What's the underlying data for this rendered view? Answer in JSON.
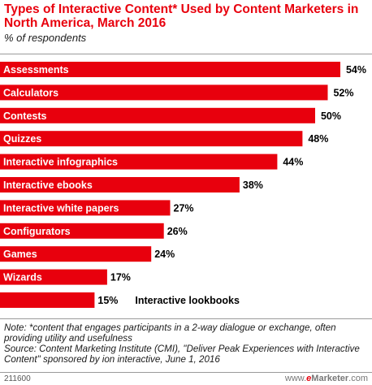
{
  "chart_data": {
    "type": "bar",
    "orientation": "horizontal",
    "title": "Types of Interactive Content* Used by Content Marketers in North America, March 2016",
    "subtitle": "% of respondents",
    "xlabel": "",
    "ylabel": "",
    "xlim": [
      0,
      54
    ],
    "grid": false,
    "legend": "none",
    "bar_color": "#e8000d",
    "categories": [
      "Assessments",
      "Calculators",
      "Contests",
      "Quizzes",
      "Interactive infographics",
      "Interactive ebooks",
      "Interactive white papers",
      "Configurators",
      "Games",
      "Wizards",
      "Interactive lookbooks"
    ],
    "values": [
      54,
      52,
      50,
      48,
      44,
      38,
      27,
      26,
      24,
      17,
      15
    ],
    "value_labels": [
      "54%",
      "52%",
      "50%",
      "48%",
      "44%",
      "38%",
      "27%",
      "26%",
      "24%",
      "17%",
      "15%"
    ]
  },
  "notes": {
    "note": "Note: *content that engages participants in a 2-way dialogue or exchange, often providing utility and usefulness",
    "source": "Source: Content Marketing Institute (CMI), \"Deliver Peak Experiences with Interactive Content\" sponsored by ion interactive, June 1, 2016"
  },
  "footer": {
    "chart_id": "211600",
    "brand_prefix": "www.",
    "brand_e": "e",
    "brand_name": "Marketer",
    "brand_suffix": ".com"
  },
  "colors": {
    "bar": "#e8000d",
    "title": "#e8000d",
    "bar_text": "#ffffff",
    "label_text": "#000000"
  }
}
